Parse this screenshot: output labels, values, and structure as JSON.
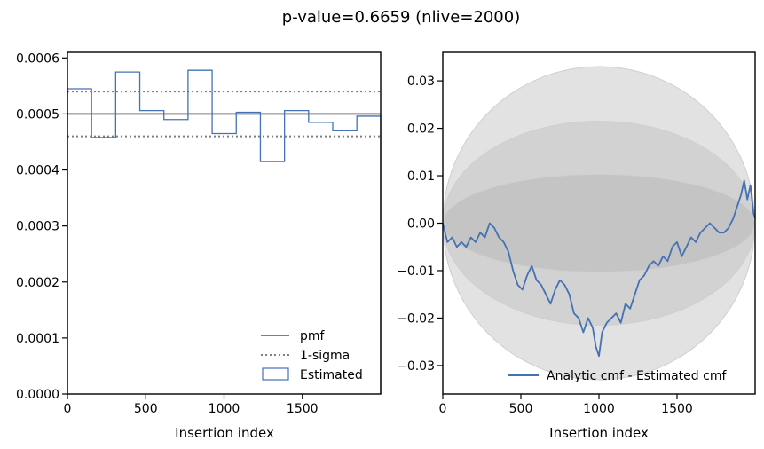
{
  "suptitle": "p-value=0.6659 (nlive=2000)",
  "colors": {
    "estimated": "#4472b4",
    "pmf": "#808080",
    "sigma": "#808080",
    "band_outer": "#e2e2e2",
    "band_mid": "#d2d2d2",
    "band_inner": "#c4c4c4",
    "band_edge": "#cfcfcf",
    "cmf": "#4472b4"
  },
  "chart_data": [
    {
      "type": "line",
      "subtype": "step-histogram",
      "title": "",
      "xlabel": "Insertion index",
      "ylabel": "",
      "xlim": [
        0,
        2000
      ],
      "ylim": [
        0,
        0.00061
      ],
      "xticks": [
        0,
        500,
        1000,
        1500
      ],
      "xtick_labels": [
        "0",
        "500",
        "1000",
        "1500"
      ],
      "yticks": [
        0,
        0.0001,
        0.0002,
        0.0003,
        0.0004,
        0.0005,
        0.0006
      ],
      "ytick_labels": [
        "0.0000",
        "0.0001",
        "0.0002",
        "0.0003",
        "0.0004",
        "0.0005",
        "0.0006"
      ],
      "bin_edges": [
        0,
        154,
        308,
        462,
        616,
        770,
        924,
        1078,
        1232,
        1386,
        1540,
        1694,
        1848,
        2000
      ],
      "values": [
        0.000545,
        0.000458,
        0.000575,
        0.000506,
        0.00049,
        0.000578,
        0.000465,
        0.000503,
        0.000415,
        0.000506,
        0.000485,
        0.00047,
        0.000496
      ],
      "pmf": 0.0005,
      "sigma_lines": [
        0.00054,
        0.00046
      ],
      "legend": [
        "pmf",
        "1-sigma",
        "Estimated"
      ],
      "legend_loc": "lower right"
    },
    {
      "type": "line",
      "title": "",
      "xlabel": "Insertion index",
      "ylabel": "",
      "xlim": [
        0,
        2000
      ],
      "ylim": [
        -0.036,
        0.036
      ],
      "xticks": [
        0,
        500,
        1000,
        1500
      ],
      "xtick_labels": [
        "0",
        "500",
        "1000",
        "1500"
      ],
      "yticks": [
        -0.03,
        -0.02,
        -0.01,
        0,
        0.01,
        0.02,
        0.03
      ],
      "ytick_labels": [
        "−0.03",
        "−0.02",
        "−0.01",
        "0.00",
        "0.01",
        "0.02",
        "0.03"
      ],
      "bands": [
        {
          "name": "3-sigma",
          "peak": 0.033
        },
        {
          "name": "2-sigma",
          "peak": 0.0215
        },
        {
          "name": "1-sigma",
          "peak": 0.0103
        }
      ],
      "series": [
        {
          "name": "Analytic cmf - Estimated cmf",
          "x": [
            0,
            30,
            60,
            90,
            120,
            150,
            180,
            210,
            240,
            270,
            300,
            330,
            360,
            390,
            420,
            450,
            480,
            510,
            540,
            570,
            600,
            630,
            660,
            690,
            720,
            750,
            780,
            810,
            840,
            870,
            900,
            930,
            960,
            980,
            1000,
            1020,
            1050,
            1080,
            1110,
            1140,
            1170,
            1200,
            1230,
            1260,
            1290,
            1320,
            1350,
            1380,
            1410,
            1440,
            1470,
            1500,
            1530,
            1560,
            1590,
            1620,
            1650,
            1680,
            1710,
            1740,
            1770,
            1800,
            1830,
            1860,
            1890,
            1910,
            1930,
            1950,
            1970,
            1990,
            2000
          ],
          "y": [
            0,
            -0.004,
            -0.003,
            -0.005,
            -0.004,
            -0.005,
            -0.003,
            -0.004,
            -0.002,
            -0.003,
            0,
            -0.001,
            -0.003,
            -0.004,
            -0.006,
            -0.01,
            -0.013,
            -0.014,
            -0.011,
            -0.009,
            -0.012,
            -0.013,
            -0.015,
            -0.017,
            -0.014,
            -0.012,
            -0.013,
            -0.015,
            -0.019,
            -0.02,
            -0.023,
            -0.02,
            -0.022,
            -0.026,
            -0.028,
            -0.023,
            -0.021,
            -0.02,
            -0.019,
            -0.021,
            -0.017,
            -0.018,
            -0.015,
            -0.012,
            -0.011,
            -0.009,
            -0.008,
            -0.009,
            -0.007,
            -0.008,
            -0.005,
            -0.004,
            -0.007,
            -0.005,
            -0.003,
            -0.004,
            -0.002,
            -0.001,
            0,
            -0.001,
            -0.002,
            -0.002,
            -0.001,
            0.001,
            0.004,
            0.006,
            0.009,
            0.005,
            0.008,
            0.002,
            0.001
          ]
        }
      ],
      "legend": [
        "Analytic cmf - Estimated cmf"
      ],
      "legend_loc": "lower right"
    }
  ]
}
